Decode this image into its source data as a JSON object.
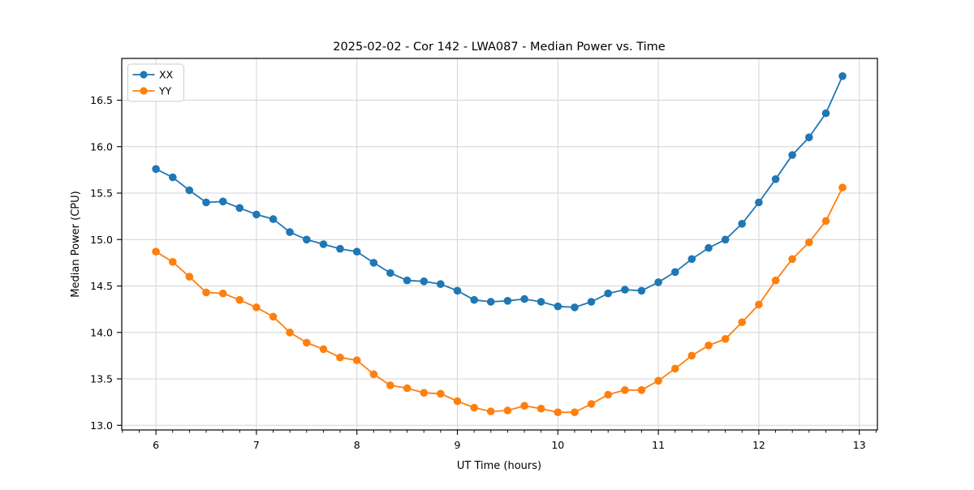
{
  "chart_data": {
    "type": "line",
    "title": "2025-02-02 - Cor 142 - LWA087 - Median Power vs. Time",
    "xlabel": "UT Time (hours)",
    "ylabel": "Median Power (CPU)",
    "xlim": [
      5.66,
      13.18
    ],
    "ylim": [
      12.95,
      16.95
    ],
    "xticks": [
      6,
      7,
      8,
      9,
      10,
      11,
      12,
      13
    ],
    "yticks": [
      13.0,
      13.5,
      14.0,
      14.5,
      15.0,
      15.5,
      16.0,
      16.5
    ],
    "x_minor_step_hours": 0.166667,
    "grid": true,
    "grid_color": "#d4d4d4",
    "legend_position": "upper left",
    "x": [
      6.0,
      6.167,
      6.333,
      6.5,
      6.667,
      6.833,
      7.0,
      7.167,
      7.333,
      7.5,
      7.667,
      7.833,
      8.0,
      8.167,
      8.333,
      8.5,
      8.667,
      8.833,
      9.0,
      9.167,
      9.333,
      9.5,
      9.667,
      9.833,
      10.0,
      10.167,
      10.333,
      10.5,
      10.667,
      10.833,
      11.0,
      11.167,
      11.333,
      11.5,
      11.667,
      11.833,
      12.0,
      12.167,
      12.333,
      12.5,
      12.667,
      12.833
    ],
    "series": [
      {
        "name": "XX",
        "color": "#1f77b4",
        "values": [
          15.76,
          15.67,
          15.53,
          15.4,
          15.41,
          15.34,
          15.27,
          15.22,
          15.08,
          15.0,
          14.95,
          14.9,
          14.87,
          14.75,
          14.64,
          14.56,
          14.55,
          14.52,
          14.45,
          14.35,
          14.33,
          14.34,
          14.36,
          14.33,
          14.28,
          14.27,
          14.33,
          14.42,
          14.46,
          14.45,
          14.54,
          14.65,
          14.79,
          14.91,
          15.0,
          15.17,
          15.4,
          15.65,
          15.91,
          16.1,
          16.36,
          16.76
        ]
      },
      {
        "name": "YY",
        "color": "#ff7f0e",
        "values": [
          14.87,
          14.76,
          14.6,
          14.43,
          14.42,
          14.35,
          14.27,
          14.17,
          14.0,
          13.89,
          13.82,
          13.73,
          13.7,
          13.55,
          13.43,
          13.4,
          13.35,
          13.34,
          13.26,
          13.19,
          13.15,
          13.16,
          13.21,
          13.18,
          13.14,
          13.14,
          13.23,
          13.33,
          13.38,
          13.38,
          13.48,
          13.61,
          13.75,
          13.86,
          13.93,
          14.11,
          14.3,
          14.56,
          14.79,
          14.97,
          15.2,
          15.56
        ]
      }
    ]
  }
}
